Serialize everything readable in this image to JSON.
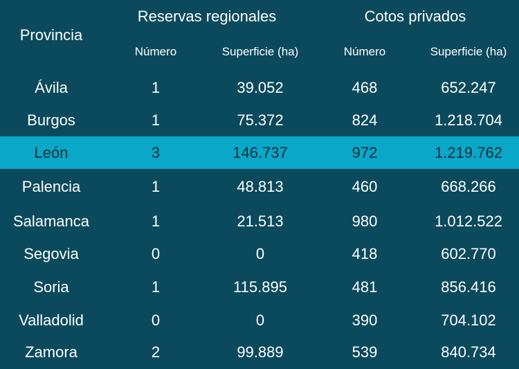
{
  "table": {
    "headers": {
      "province": "Provincia",
      "groups": [
        "Reservas regionales",
        "Cotos privados"
      ],
      "subheaders": [
        "Número",
        "Superficie (ha)",
        "Número",
        "Superficie (ha)"
      ]
    },
    "rows": [
      [
        "Ávila",
        "1",
        "39.052",
        "468",
        "652.247"
      ],
      [
        "Burgos",
        "1",
        "75.372",
        "824",
        "1.218.704"
      ],
      [
        "León",
        "3",
        "146.737",
        "972",
        "1.219.762"
      ],
      [
        "Palencia",
        "1",
        "48.813",
        "460",
        "668.266"
      ],
      [
        "Salamanca",
        "1",
        "21.513",
        "980",
        "1.012.522"
      ],
      [
        "Segovia",
        "0",
        "0",
        "418",
        "602.770"
      ],
      [
        "Soria",
        "1",
        "115.895",
        "481",
        "856.416"
      ],
      [
        "Valladolid",
        "0",
        "0",
        "390",
        "704.102"
      ],
      [
        "Zamora",
        "2",
        "99.889",
        "539",
        "840.734"
      ]
    ]
  },
  "colors": {
    "background": "#0b4a5c",
    "highlight_row": "#0aa7c8",
    "text": "#ffffff",
    "highlight_text": "#0b2f3a"
  }
}
